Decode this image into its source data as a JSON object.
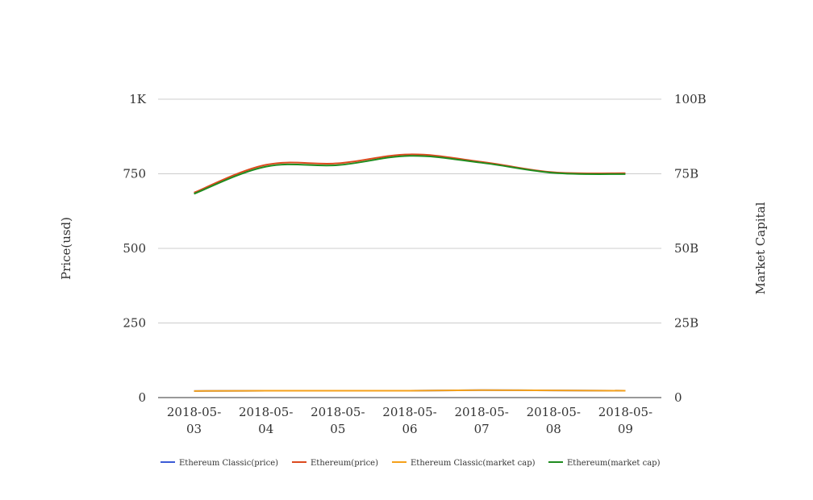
{
  "chart_data": {
    "type": "line",
    "title": "",
    "xlabel": "",
    "ylabel": "Price(usd)",
    "y2label": "Market Capital",
    "categories_lines": [
      [
        "2018-05-",
        "03"
      ],
      [
        "2018-05-",
        "04"
      ],
      [
        "2018-05-",
        "05"
      ],
      [
        "2018-05-",
        "06"
      ],
      [
        "2018-05-",
        "07"
      ],
      [
        "2018-05-",
        "08"
      ],
      [
        "2018-05-",
        "09"
      ]
    ],
    "ylim": [
      0,
      1000
    ],
    "y2lim": [
      0,
      100000000000
    ],
    "y_ticks": [
      {
        "value": 0,
        "label": "0"
      },
      {
        "value": 250,
        "label": "250"
      },
      {
        "value": 500,
        "label": "500"
      },
      {
        "value": 750,
        "label": "750"
      },
      {
        "value": 1000,
        "label": "1K"
      }
    ],
    "y2_ticks": [
      {
        "value": 0,
        "label": "0"
      },
      {
        "value": 25000000000,
        "label": "25B"
      },
      {
        "value": 50000000000,
        "label": "50B"
      },
      {
        "value": 75000000000,
        "label": "75B"
      },
      {
        "value": 100000000000,
        "label": "100B"
      }
    ],
    "grid": true,
    "legend_position": "bottom",
    "series": [
      {
        "name": "Ethereum Classic(price)",
        "axis": "left",
        "color": "#3b5bd6",
        "values": [
          22,
          23,
          23,
          23,
          25,
          24,
          23
        ]
      },
      {
        "name": "Ethereum(price)",
        "axis": "right",
        "color": "#dc4a1e",
        "values": [
          68700000000,
          78000000000,
          78500000000,
          81500000000,
          79000000000,
          75500000000,
          75200000000
        ]
      },
      {
        "name": "Ethereum Classic(market cap)",
        "axis": "right",
        "color": "#f5a11a",
        "values": [
          2200000000,
          2300000000,
          2300000000,
          2300000000,
          2500000000,
          2400000000,
          2300000000
        ]
      },
      {
        "name": "Ethereum(market cap)",
        "axis": "left",
        "color": "#1f8c1f",
        "values": [
          683,
          774,
          779,
          810,
          787,
          753,
          749
        ]
      }
    ]
  }
}
